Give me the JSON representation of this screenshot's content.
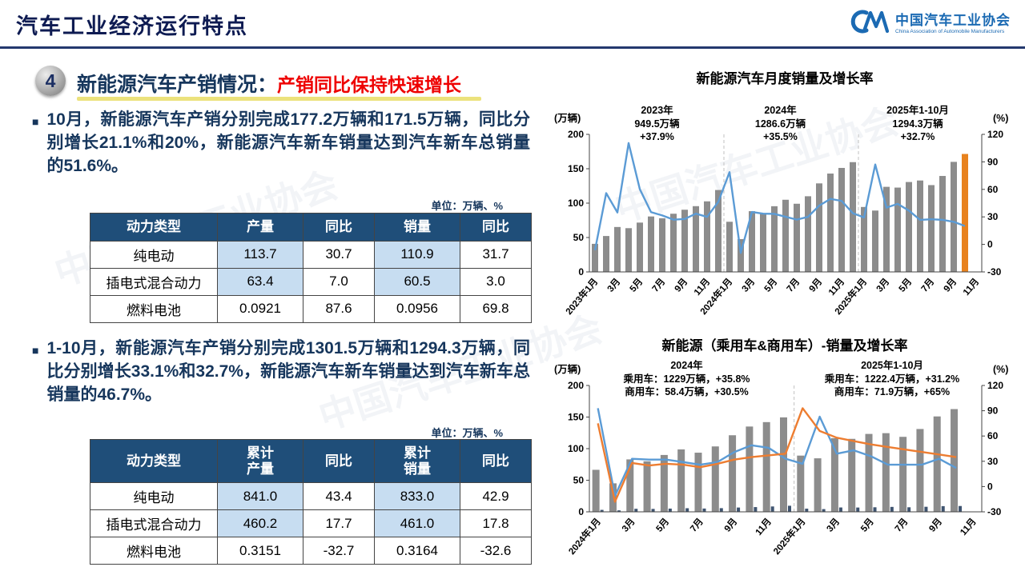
{
  "header": {
    "title": "汽车工业经济运行特点",
    "logo": {
      "org_cn": "中国汽车工业协会",
      "org_en": "China Association of Automobile Manufacturers"
    }
  },
  "section": {
    "number": "4",
    "title_main": "新能源汽车产销情况：",
    "title_highlight": "产销同比保持快速增长"
  },
  "left": {
    "bullet1": "10月，新能源汽车产销分别完成177.2万辆和171.5万辆，同比分别增长21.1%和20%，新能源汽车新车销量达到汽车新车总销量的51.6%。",
    "bullet2": "1-10月，新能源汽车产销分别完成1301.5万辆和1294.3万辆，同比分别增长33.1%和32.7%，新能源汽车新车销量达到汽车新车总销量的46.7%。",
    "unit_label": "单位：万辆、%",
    "table1": {
      "headers": [
        "动力类型",
        "产量",
        "同比",
        "销量",
        "同比"
      ],
      "rows": [
        [
          "纯电动",
          "113.7",
          "30.7",
          "110.9",
          "31.7"
        ],
        [
          "插电式混合动力",
          "63.4",
          "7.0",
          "60.5",
          "3.0"
        ],
        [
          "燃料电池",
          "0.0921",
          "87.6",
          "0.0956",
          "69.8"
        ]
      ],
      "highlight_cells": [
        [
          0,
          1
        ],
        [
          0,
          3
        ],
        [
          1,
          1
        ],
        [
          1,
          3
        ]
      ]
    },
    "table2": {
      "headers": [
        "动力类型",
        "累计\n产量",
        "同比",
        "累计\n销量",
        "同比"
      ],
      "rows": [
        [
          "纯电动",
          "841.0",
          "43.4",
          "833.0",
          "42.9"
        ],
        [
          "插电式混合动力",
          "460.2",
          "17.7",
          "461.0",
          "17.8"
        ],
        [
          "燃料电池",
          "0.3151",
          "-32.7",
          "0.3164",
          "-32.6"
        ]
      ],
      "highlight_cells": [
        [
          0,
          1
        ],
        [
          0,
          3
        ],
        [
          1,
          1
        ],
        [
          1,
          3
        ]
      ]
    }
  },
  "colors": {
    "navy_text": "#16365c",
    "red_accent": "#ee0000",
    "table_header": "#1f4e79",
    "highlight_cell": "#c7ddf1",
    "bar_gray": "#8c8c8c",
    "bar_orange": "#e8821e",
    "line_blue": "#5b9bd5",
    "line_orange": "#ed7d31",
    "bar_dark": "#3f5470",
    "logo_blue": "#1b6ab3"
  },
  "chart_data": [
    {
      "type": "bar+line",
      "title": "新能源汽车月度销量及增长率",
      "left_axis": {
        "label": "(万辆)",
        "min": 0,
        "max": 200,
        "step": 50
      },
      "right_axis": {
        "label": "(%)",
        "min": -30,
        "max": 120,
        "step": 30
      },
      "slots": 35,
      "m": {
        "l": 46,
        "r": 44,
        "t": 64,
        "b": 66
      },
      "separators": [
        12,
        24
      ],
      "bars": {
        "name": "monthly-sales-bar",
        "color": "#8c8c8c",
        "last_color": "#e8821e",
        "w": 8,
        "values": [
          40.8,
          52.2,
          65.3,
          63.6,
          71.7,
          80.6,
          78.0,
          84.6,
          90.4,
          95.6,
          102.6,
          119.1,
          72.9,
          47.7,
          88.3,
          85.0,
          95.5,
          104.9,
          99.1,
          110.0,
          128.7,
          143.0,
          151.2,
          159.6,
          94.4,
          89.2,
          123.7,
          122.6,
          130.7,
          132.9,
          126.2,
          139.5,
          160.0,
          171.5
        ]
      },
      "lines": [
        {
          "name": "yoy-growth-line",
          "color": "#5b9bd5",
          "values": [
            -6.3,
            55.9,
            34.8,
            110.5,
            60.2,
            35.2,
            31.6,
            27.0,
            27.7,
            33.5,
            30.0,
            46.4,
            78.8,
            -9.2,
            35.3,
            33.5,
            33.3,
            30.1,
            27.0,
            30.0,
            42.3,
            49.6,
            47.4,
            34.0,
            29.4,
            87.1,
            40.1,
            44.2,
            36.9,
            26.7,
            27.4,
            26.8,
            24.6,
            20.0
          ]
        }
      ],
      "x_labels": [
        {
          "i": 0,
          "t": "2023年1月"
        },
        {
          "i": 2,
          "t": "3月"
        },
        {
          "i": 4,
          "t": "5月"
        },
        {
          "i": 6,
          "t": "7月"
        },
        {
          "i": 8,
          "t": "9月"
        },
        {
          "i": 10,
          "t": "11月"
        },
        {
          "i": 12,
          "t": "2024年1月"
        },
        {
          "i": 14,
          "t": "3月"
        },
        {
          "i": 16,
          "t": "5月"
        },
        {
          "i": 18,
          "t": "7月"
        },
        {
          "i": 20,
          "t": "9月"
        },
        {
          "i": 22,
          "t": "11月"
        },
        {
          "i": 24,
          "t": "2025年1月"
        },
        {
          "i": 26,
          "t": "3月"
        },
        {
          "i": 28,
          "t": "5月"
        },
        {
          "i": 30,
          "t": "7月"
        },
        {
          "i": 32,
          "t": "9月"
        },
        {
          "i": 34,
          "t": "11月"
        }
      ],
      "annotations": [
        {
          "text": "2023年\n949.5万辆\n+37.9%"
        },
        {
          "text": "2024年\n1286.6万辆\n+35.5%"
        },
        {
          "text": "2025年1-10月\n1294.3万辆\n+32.7%"
        }
      ]
    },
    {
      "type": "bar+line",
      "title": "新能源（乘用车&商用车）-销量及增长率",
      "left_axis": {
        "label": "(万辆)",
        "min": 0,
        "max": 200,
        "step": 50
      },
      "right_axis": {
        "label": "(%)",
        "min": -30,
        "max": 120,
        "step": 30
      },
      "slots": 23,
      "m": {
        "l": 46,
        "r": 44,
        "t": 44,
        "b": 79
      },
      "separators": [
        12
      ],
      "bars": {
        "name": "passenger-sales-bar",
        "color": "#8c8c8c",
        "w": 9,
        "values": [
          66.5,
          45.1,
          83.0,
          80.0,
          90.0,
          98.8,
          93.6,
          103.5,
          121.2,
          135.0,
          142.0,
          149.5,
          89.0,
          84.7,
          116.6,
          115.5,
          123.3,
          124.5,
          118.7,
          131.1,
          151.0,
          162.6
        ]
      },
      "bars2": {
        "name": "commercial-sales-bar",
        "color": "#3f5470",
        "w": 4,
        "values": [
          3.1,
          2.3,
          4.8,
          4.6,
          5.1,
          5.7,
          5.2,
          5.8,
          6.8,
          7.5,
          8.5,
          9.6,
          5.0,
          4.3,
          6.9,
          6.8,
          7.2,
          7.8,
          7.2,
          8.0,
          9.0,
          9.2
        ]
      },
      "lines": [
        {
          "name": "passenger-growth-line",
          "color": "#5b9bd5",
          "values": [
            93,
            -11,
            33,
            32,
            32,
            29,
            26,
            29,
            41,
            49,
            46,
            33,
            27,
            83,
            39,
            43,
            36,
            26,
            26,
            26,
            33,
            22
          ]
        },
        {
          "name": "commercial-growth-line",
          "color": "#ed7d31",
          "values": [
            75,
            -18,
            28,
            25,
            27,
            26,
            23,
            27,
            32,
            35,
            37,
            39,
            93,
            66,
            58,
            54,
            50,
            47,
            44,
            41,
            38,
            35
          ]
        }
      ],
      "x_labels": [
        {
          "i": 0,
          "t": "2024年1月"
        },
        {
          "i": 2,
          "t": "3月"
        },
        {
          "i": 4,
          "t": "5月"
        },
        {
          "i": 6,
          "t": "7月"
        },
        {
          "i": 8,
          "t": "9月"
        },
        {
          "i": 10,
          "t": "11月"
        },
        {
          "i": 12,
          "t": "2025年1月"
        },
        {
          "i": 14,
          "t": "3月"
        },
        {
          "i": 16,
          "t": "5月"
        },
        {
          "i": 18,
          "t": "7月"
        },
        {
          "i": 20,
          "t": "9月"
        },
        {
          "i": 22,
          "t": "11月"
        }
      ],
      "annotations": [
        {
          "text": "2024年\n乘用车：1229万辆，+35.8%\n商用车：58.4万辆，+30.5%"
        },
        {
          "text": "2025年1-10月\n乘用车：1222.4万辆，+31.2%\n商用车：71.9万辆，+65%"
        }
      ]
    }
  ]
}
